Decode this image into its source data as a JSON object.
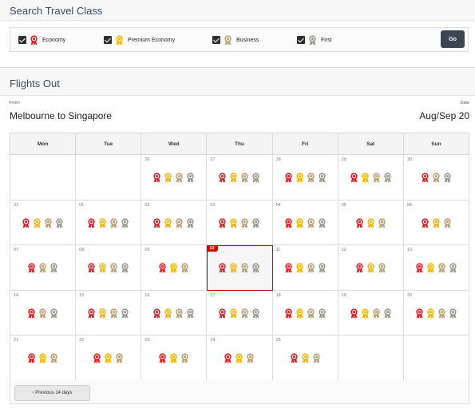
{
  "search": {
    "title": "Search Travel Class",
    "classes": [
      {
        "label": "Economy",
        "checked": true,
        "medal": "economy-medal-icon"
      },
      {
        "label": "Premium Economy",
        "checked": true,
        "medal": "premium-economy-medal-icon"
      },
      {
        "label": "Business",
        "checked": true,
        "medal": "business-medal-icon"
      },
      {
        "label": "First",
        "checked": true,
        "medal": "first-medal-icon"
      }
    ],
    "go_label": "Go"
  },
  "flights": {
    "title": "Flights Out",
    "from_label": "From",
    "route": "Melbourne to Singapore",
    "date_label": "Date",
    "date_value": "Aug/Sep 20"
  },
  "colors": {
    "economy": "#d8242c",
    "premium": "#f2b705",
    "business": "#b8a27a",
    "first": "#9a9a8e",
    "selected": "#d50000"
  },
  "calendar": {
    "days": [
      "Mon",
      "Tue",
      "Wed",
      "Thu",
      "Fri",
      "Sat",
      "Sun"
    ],
    "weeks": [
      [
        {
          "day": "",
          "medals": []
        },
        {
          "day": "",
          "medals": []
        },
        {
          "day": "26",
          "medals": [
            "economy",
            "premium",
            "business",
            "first"
          ]
        },
        {
          "day": "27",
          "medals": [
            "economy",
            "premium",
            "business",
            "first"
          ]
        },
        {
          "day": "28",
          "medals": [
            "economy",
            "premium",
            "business",
            "first"
          ]
        },
        {
          "day": "29",
          "medals": [
            "economy",
            "premium",
            "business",
            "first"
          ]
        },
        {
          "day": "30",
          "medals": [
            "economy",
            "business",
            "first"
          ]
        }
      ],
      [
        {
          "day": "31",
          "medals": [
            "economy",
            "premium",
            "business",
            "first"
          ]
        },
        {
          "day": "01",
          "medals": [
            "economy",
            "premium",
            "business",
            "first"
          ]
        },
        {
          "day": "02",
          "medals": [
            "economy",
            "premium",
            "business",
            "first"
          ]
        },
        {
          "day": "03",
          "medals": [
            "economy",
            "premium",
            "business",
            "first"
          ]
        },
        {
          "day": "04",
          "medals": [
            "economy",
            "premium",
            "business",
            "first"
          ]
        },
        {
          "day": "05",
          "medals": [
            "economy",
            "premium",
            "business"
          ]
        },
        {
          "day": "06",
          "medals": [
            "economy",
            "premium",
            "business"
          ]
        }
      ],
      [
        {
          "day": "07",
          "medals": [
            "economy",
            "business",
            "first"
          ]
        },
        {
          "day": "08",
          "medals": [
            "economy",
            "premium",
            "business",
            "first"
          ]
        },
        {
          "day": "09",
          "medals": [
            "economy",
            "premium",
            "business"
          ]
        },
        {
          "day": "10",
          "medals": [
            "economy",
            "premium",
            "business",
            "first"
          ],
          "selected": true
        },
        {
          "day": "11",
          "medals": [
            "economy",
            "premium",
            "business",
            "first"
          ]
        },
        {
          "day": "12",
          "medals": [
            "economy",
            "premium",
            "business"
          ]
        },
        {
          "day": "13",
          "medals": [
            "economy",
            "premium",
            "business",
            "first"
          ]
        }
      ],
      [
        {
          "day": "14",
          "medals": [
            "economy",
            "business",
            "first"
          ]
        },
        {
          "day": "15",
          "medals": [
            "economy",
            "premium",
            "business",
            "first"
          ]
        },
        {
          "day": "16",
          "medals": [
            "economy",
            "premium",
            "business",
            "first"
          ]
        },
        {
          "day": "17",
          "medals": [
            "economy",
            "premium",
            "business",
            "first"
          ]
        },
        {
          "day": "18",
          "medals": [
            "economy",
            "premium",
            "business",
            "first"
          ]
        },
        {
          "day": "19",
          "medals": [
            "economy",
            "premium",
            "business",
            "first"
          ]
        },
        {
          "day": "20",
          "medals": [
            "economy",
            "premium",
            "business",
            "first"
          ]
        }
      ],
      [
        {
          "day": "21",
          "medals": [
            "economy",
            "premium",
            "business"
          ]
        },
        {
          "day": "22",
          "medals": [
            "economy",
            "premium",
            "business"
          ]
        },
        {
          "day": "23",
          "medals": [
            "economy",
            "premium",
            "business"
          ]
        },
        {
          "day": "24",
          "medals": [
            "economy",
            "premium",
            "business"
          ]
        },
        {
          "day": "25",
          "medals": [
            "economy",
            "premium",
            "business"
          ]
        },
        {
          "day": "",
          "medals": []
        },
        {
          "day": "",
          "medals": []
        }
      ]
    ],
    "prev_label": "‹ Previous 14 days"
  }
}
